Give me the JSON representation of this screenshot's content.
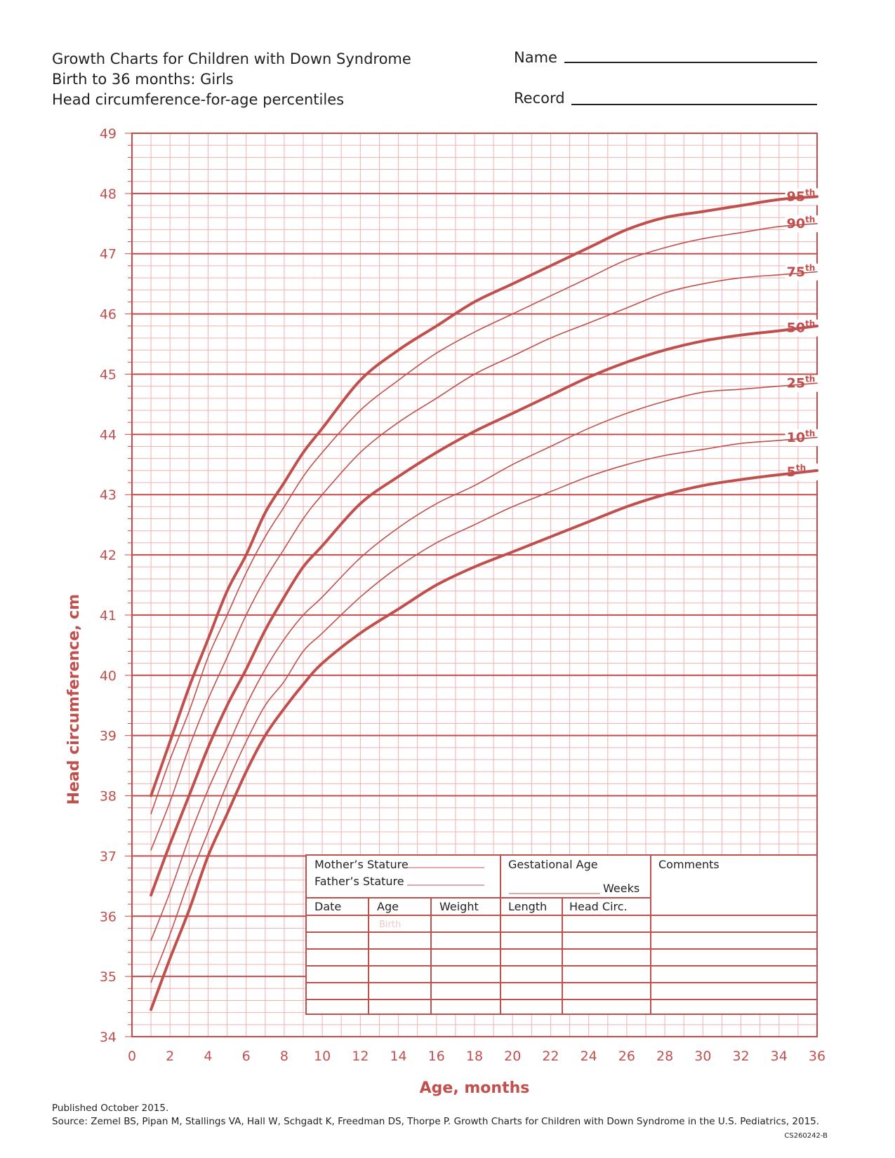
{
  "header": {
    "title_lines": [
      "Growth Charts for Children with Down Syndrome",
      "Birth to 36 months: Girls",
      "Head circumference-for-age percentiles"
    ],
    "name_label": "Name",
    "record_label": "Record"
  },
  "chart_data": {
    "type": "line",
    "title": "Head circumference-for-age percentiles",
    "xlabel": "Age, months",
    "ylabel": "Head circumference, cm",
    "xlim": [
      0,
      36
    ],
    "ylim": [
      34,
      49
    ],
    "x_ticks": [
      0,
      2,
      4,
      6,
      8,
      10,
      12,
      14,
      16,
      18,
      20,
      22,
      24,
      26,
      28,
      30,
      32,
      34,
      36
    ],
    "y_ticks": [
      34,
      35,
      36,
      37,
      38,
      39,
      40,
      41,
      42,
      43,
      44,
      45,
      46,
      47,
      48,
      49
    ],
    "grid": true,
    "colors": {
      "line": "#c0504d",
      "grid": "#f0b0b0",
      "grid_major": "#c94848",
      "axis_text": "#c0504d"
    },
    "x": [
      1,
      2,
      3,
      4,
      5,
      6,
      7,
      8,
      9,
      10,
      12,
      14,
      16,
      18,
      20,
      22,
      24,
      26,
      28,
      30,
      32,
      34,
      36
    ],
    "series": [
      {
        "name": "95",
        "bold": true,
        "values": [
          38.0,
          38.9,
          39.8,
          40.6,
          41.4,
          42.0,
          42.7,
          43.2,
          43.7,
          44.1,
          44.9,
          45.4,
          45.8,
          46.2,
          46.5,
          46.8,
          47.1,
          47.4,
          47.6,
          47.7,
          47.8,
          47.9,
          47.95
        ]
      },
      {
        "name": "90",
        "bold": false,
        "values": [
          37.7,
          38.6,
          39.4,
          40.3,
          41.0,
          41.7,
          42.3,
          42.8,
          43.3,
          43.7,
          44.4,
          44.9,
          45.35,
          45.7,
          46.0,
          46.3,
          46.6,
          46.9,
          47.1,
          47.25,
          47.35,
          47.45,
          47.5
        ]
      },
      {
        "name": "75",
        "bold": false,
        "values": [
          37.1,
          37.9,
          38.8,
          39.6,
          40.3,
          41.0,
          41.6,
          42.1,
          42.6,
          43.0,
          43.7,
          44.2,
          44.6,
          45.0,
          45.3,
          45.6,
          45.85,
          46.1,
          46.35,
          46.5,
          46.6,
          46.65,
          46.7
        ]
      },
      {
        "name": "50",
        "bold": true,
        "values": [
          36.35,
          37.2,
          38.0,
          38.8,
          39.5,
          40.1,
          40.75,
          41.3,
          41.8,
          42.15,
          42.85,
          43.3,
          43.7,
          44.05,
          44.35,
          44.65,
          44.95,
          45.2,
          45.4,
          45.55,
          45.65,
          45.72,
          45.8
        ]
      },
      {
        "name": "25",
        "bold": false,
        "values": [
          35.6,
          36.4,
          37.3,
          38.1,
          38.8,
          39.5,
          40.1,
          40.6,
          41.0,
          41.3,
          41.95,
          42.45,
          42.85,
          43.15,
          43.5,
          43.8,
          44.1,
          44.35,
          44.55,
          44.7,
          44.75,
          44.8,
          44.85
        ]
      },
      {
        "name": "10",
        "bold": false,
        "values": [
          34.9,
          35.7,
          36.6,
          37.4,
          38.2,
          38.9,
          39.5,
          39.9,
          40.4,
          40.7,
          41.3,
          41.8,
          42.2,
          42.5,
          42.8,
          43.05,
          43.3,
          43.5,
          43.65,
          43.75,
          43.85,
          43.9,
          43.95
        ]
      },
      {
        "name": "5",
        "bold": true,
        "values": [
          34.45,
          35.3,
          36.1,
          37.0,
          37.7,
          38.4,
          39.0,
          39.45,
          39.85,
          40.2,
          40.7,
          41.1,
          41.5,
          41.8,
          42.05,
          42.3,
          42.55,
          42.8,
          43.0,
          43.15,
          43.25,
          43.33,
          43.4
        ]
      }
    ],
    "percentile_suffix": "th"
  },
  "record_table": {
    "mother_stature": "Mother’s Stature",
    "father_stature": "Father’s Stature",
    "gestational_age": "Gestational Age",
    "weeks": "Weeks",
    "comments": "Comments",
    "columns": [
      "Date",
      "Age",
      "Weight",
      "Length",
      "Head Circ."
    ],
    "birth_label": "Birth"
  },
  "footer": {
    "published": "Published October 2015.",
    "source": "Source: Zemel BS, Pipan M, Stallings VA, Hall W, Schgadt K, Freedman DS, Thorpe P. Growth Charts for Children with Down Syndrome in the U.S. Pediatrics, 2015.",
    "code": "CS260242-B"
  }
}
